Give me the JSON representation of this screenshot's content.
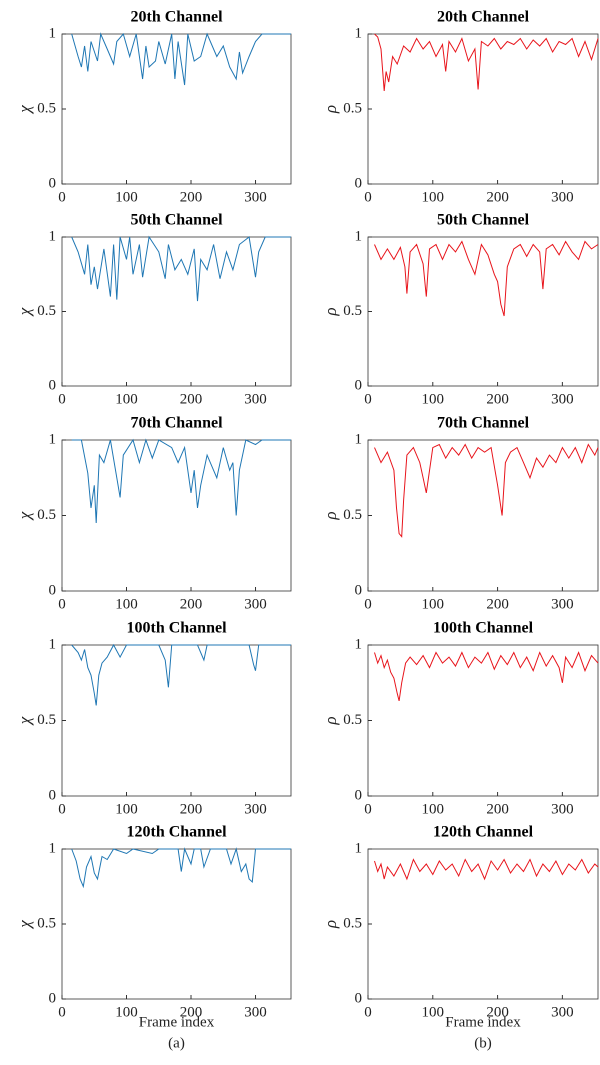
{
  "chart_data": [
    {
      "type": "line",
      "title": "20th Channel",
      "ylabel": "χ",
      "xlim": [
        0,
        355
      ],
      "ylim": [
        0,
        1
      ],
      "xticks": [
        0,
        100,
        200,
        300
      ],
      "yticks": [
        0,
        0.5,
        1
      ],
      "grid": false,
      "color": "#1f77b4",
      "x": [
        15,
        25,
        30,
        35,
        40,
        45,
        55,
        60,
        70,
        80,
        85,
        95,
        105,
        115,
        125,
        130,
        135,
        145,
        150,
        160,
        170,
        175,
        180,
        190,
        195,
        205,
        215,
        225,
        240,
        250,
        260,
        270,
        275,
        280,
        290,
        300,
        310,
        320,
        355
      ],
      "values": [
        1,
        0.85,
        0.78,
        0.92,
        0.75,
        0.95,
        0.82,
        1,
        0.9,
        0.8,
        0.95,
        1,
        0.85,
        1,
        0.7,
        0.92,
        0.78,
        0.82,
        0.95,
        0.8,
        1,
        0.7,
        0.95,
        0.66,
        1,
        0.82,
        0.85,
        1,
        0.85,
        0.92,
        0.78,
        0.7,
        0.88,
        0.74,
        0.85,
        0.95,
        1,
        1,
        1
      ]
    },
    {
      "type": "line",
      "title": "50th Channel",
      "ylabel": "χ",
      "xlim": [
        0,
        355
      ],
      "ylim": [
        0,
        1
      ],
      "xticks": [
        0,
        100,
        200,
        300
      ],
      "yticks": [
        0,
        0.5,
        1
      ],
      "grid": false,
      "color": "#1f77b4",
      "x": [
        15,
        25,
        35,
        40,
        45,
        50,
        55,
        65,
        75,
        80,
        85,
        90,
        100,
        105,
        110,
        120,
        125,
        135,
        150,
        160,
        165,
        175,
        185,
        195,
        205,
        210,
        215,
        225,
        235,
        245,
        255,
        265,
        275,
        290,
        300,
        305,
        315,
        355
      ],
      "values": [
        1,
        0.9,
        0.75,
        0.95,
        0.68,
        0.8,
        0.65,
        0.92,
        0.6,
        0.95,
        0.58,
        1,
        0.85,
        1,
        0.75,
        0.95,
        0.73,
        1,
        0.9,
        0.72,
        0.95,
        0.78,
        0.85,
        0.75,
        0.92,
        0.57,
        0.85,
        0.78,
        0.95,
        0.72,
        0.9,
        0.78,
        0.95,
        1,
        0.73,
        0.9,
        1,
        1
      ]
    },
    {
      "type": "line",
      "title": "70th Channel",
      "ylabel": "χ",
      "xlim": [
        0,
        355
      ],
      "ylim": [
        0,
        1
      ],
      "xticks": [
        0,
        100,
        200,
        300
      ],
      "yticks": [
        0,
        0.5,
        1
      ],
      "grid": false,
      "color": "#1f77b4",
      "x": [
        15,
        30,
        40,
        45,
        50,
        53,
        58,
        65,
        75,
        85,
        90,
        95,
        110,
        120,
        130,
        140,
        150,
        170,
        180,
        190,
        200,
        205,
        210,
        215,
        225,
        240,
        250,
        260,
        265,
        270,
        275,
        285,
        300,
        310,
        355
      ],
      "values": [
        1,
        1,
        0.78,
        0.55,
        0.7,
        0.45,
        0.9,
        0.85,
        1,
        0.75,
        0.62,
        0.9,
        1,
        0.85,
        1,
        0.88,
        1,
        0.95,
        0.85,
        0.95,
        0.65,
        0.8,
        0.55,
        0.7,
        0.9,
        0.75,
        0.95,
        0.8,
        0.85,
        0.5,
        0.8,
        1,
        0.97,
        1,
        1
      ]
    },
    {
      "type": "line",
      "title": "100th Channel",
      "ylabel": "χ",
      "xlim": [
        0,
        355
      ],
      "ylim": [
        0,
        1
      ],
      "xticks": [
        0,
        100,
        200,
        300
      ],
      "yticks": [
        0,
        0.5,
        1
      ],
      "grid": false,
      "color": "#1f77b4",
      "x": [
        15,
        25,
        30,
        35,
        40,
        45,
        50,
        53,
        57,
        62,
        70,
        80,
        90,
        100,
        150,
        160,
        165,
        170,
        210,
        220,
        225,
        290,
        297,
        300,
        305,
        355
      ],
      "values": [
        1,
        0.95,
        0.9,
        0.97,
        0.85,
        0.8,
        0.68,
        0.6,
        0.8,
        0.88,
        0.92,
        1,
        0.92,
        1,
        1,
        0.9,
        0.72,
        1,
        1,
        0.9,
        1,
        1,
        0.87,
        0.83,
        1,
        1
      ]
    },
    {
      "type": "line",
      "title": "120th Channel",
      "ylabel": "χ",
      "xlabel": "Frame index",
      "caption": "(a)",
      "xlim": [
        0,
        355
      ],
      "ylim": [
        0,
        1
      ],
      "xticks": [
        0,
        100,
        200,
        300
      ],
      "yticks": [
        0,
        0.5,
        1
      ],
      "grid": false,
      "color": "#1f77b4",
      "x": [
        15,
        22,
        28,
        33,
        38,
        45,
        50,
        55,
        62,
        70,
        80,
        100,
        110,
        140,
        150,
        180,
        185,
        190,
        200,
        205,
        215,
        220,
        230,
        255,
        262,
        270,
        278,
        285,
        290,
        295,
        300,
        355
      ],
      "values": [
        1,
        0.92,
        0.8,
        0.75,
        0.88,
        0.95,
        0.84,
        0.8,
        0.95,
        0.93,
        1,
        0.97,
        1,
        0.97,
        1,
        1,
        0.85,
        1,
        0.9,
        1,
        1,
        0.88,
        1,
        1,
        0.9,
        1,
        0.85,
        0.9,
        0.8,
        0.78,
        1,
        1
      ]
    },
    {
      "type": "line",
      "title": "20th Channel",
      "ylabel": "ρ",
      "xlim": [
        0,
        355
      ],
      "ylim": [
        0,
        1
      ],
      "xticks": [
        0,
        100,
        200,
        300
      ],
      "yticks": [
        0,
        0.5,
        1
      ],
      "grid": false,
      "color": "#e8141b",
      "x": [
        10,
        15,
        20,
        25,
        28,
        32,
        38,
        45,
        55,
        65,
        75,
        85,
        95,
        105,
        115,
        120,
        125,
        135,
        145,
        155,
        165,
        170,
        175,
        185,
        195,
        205,
        215,
        225,
        235,
        245,
        255,
        265,
        275,
        285,
        295,
        305,
        315,
        325,
        335,
        345,
        355
      ],
      "values": [
        1,
        0.98,
        0.9,
        0.62,
        0.75,
        0.68,
        0.85,
        0.8,
        0.92,
        0.88,
        0.97,
        0.9,
        0.95,
        0.85,
        0.93,
        0.75,
        0.95,
        0.88,
        0.97,
        0.82,
        0.9,
        0.63,
        0.95,
        0.92,
        0.97,
        0.9,
        0.95,
        0.93,
        0.97,
        0.9,
        0.96,
        0.92,
        0.97,
        0.88,
        0.95,
        0.93,
        0.97,
        0.85,
        0.95,
        0.83,
        0.97
      ]
    },
    {
      "type": "line",
      "title": "50th Channel",
      "ylabel": "ρ",
      "xlim": [
        0,
        355
      ],
      "ylim": [
        0,
        1
      ],
      "xticks": [
        0,
        100,
        200,
        300
      ],
      "yticks": [
        0,
        0.5,
        1
      ],
      "grid": false,
      "color": "#e8141b",
      "x": [
        10,
        20,
        30,
        40,
        50,
        57,
        60,
        65,
        75,
        85,
        90,
        95,
        105,
        115,
        125,
        135,
        145,
        155,
        165,
        175,
        185,
        195,
        200,
        205,
        210,
        215,
        225,
        235,
        245,
        255,
        265,
        270,
        275,
        285,
        295,
        305,
        315,
        325,
        335,
        345,
        355
      ],
      "values": [
        0.95,
        0.85,
        0.92,
        0.85,
        0.93,
        0.8,
        0.62,
        0.9,
        0.95,
        0.82,
        0.6,
        0.92,
        0.95,
        0.85,
        0.95,
        0.9,
        0.97,
        0.85,
        0.75,
        0.95,
        0.88,
        0.75,
        0.7,
        0.55,
        0.47,
        0.8,
        0.92,
        0.95,
        0.87,
        0.95,
        0.9,
        0.65,
        0.92,
        0.95,
        0.88,
        0.97,
        0.9,
        0.85,
        0.97,
        0.92,
        0.95
      ]
    },
    {
      "type": "line",
      "title": "70th Channel",
      "ylabel": "ρ",
      "xlim": [
        0,
        355
      ],
      "ylim": [
        0,
        1
      ],
      "xticks": [
        0,
        100,
        200,
        300
      ],
      "yticks": [
        0,
        0.5,
        1
      ],
      "grid": false,
      "color": "#e8141b",
      "x": [
        10,
        20,
        30,
        40,
        44,
        48,
        52,
        55,
        60,
        70,
        80,
        85,
        90,
        100,
        110,
        120,
        130,
        140,
        150,
        160,
        170,
        180,
        190,
        200,
        207,
        212,
        220,
        230,
        240,
        250,
        260,
        270,
        280,
        290,
        300,
        310,
        320,
        330,
        340,
        350,
        355
      ],
      "values": [
        0.95,
        0.85,
        0.92,
        0.8,
        0.55,
        0.38,
        0.36,
        0.6,
        0.9,
        0.95,
        0.85,
        0.75,
        0.65,
        0.95,
        0.97,
        0.88,
        0.95,
        0.9,
        0.97,
        0.88,
        0.95,
        0.92,
        0.95,
        0.7,
        0.5,
        0.85,
        0.92,
        0.95,
        0.85,
        0.75,
        0.88,
        0.82,
        0.9,
        0.85,
        0.95,
        0.88,
        0.95,
        0.85,
        0.97,
        0.9,
        0.95
      ]
    },
    {
      "type": "line",
      "title": "100th Channel",
      "ylabel": "ρ",
      "xlim": [
        0,
        355
      ],
      "ylim": [
        0,
        1
      ],
      "xticks": [
        0,
        100,
        200,
        300
      ],
      "yticks": [
        0,
        0.5,
        1
      ],
      "grid": false,
      "color": "#e8141b",
      "x": [
        10,
        15,
        20,
        25,
        30,
        35,
        40,
        45,
        48,
        52,
        58,
        65,
        75,
        85,
        95,
        105,
        115,
        125,
        135,
        145,
        155,
        165,
        175,
        185,
        195,
        205,
        215,
        225,
        235,
        245,
        255,
        265,
        275,
        285,
        295,
        300,
        305,
        315,
        325,
        335,
        345,
        355
      ],
      "values": [
        0.95,
        0.88,
        0.93,
        0.85,
        0.9,
        0.82,
        0.78,
        0.68,
        0.63,
        0.75,
        0.88,
        0.92,
        0.87,
        0.93,
        0.85,
        0.95,
        0.88,
        0.92,
        0.86,
        0.95,
        0.85,
        0.92,
        0.88,
        0.95,
        0.84,
        0.93,
        0.87,
        0.95,
        0.85,
        0.92,
        0.83,
        0.95,
        0.86,
        0.93,
        0.85,
        0.75,
        0.92,
        0.85,
        0.95,
        0.83,
        0.93,
        0.88
      ]
    },
    {
      "type": "line",
      "title": "120th Channel",
      "ylabel": "ρ",
      "xlabel": "Frame index",
      "caption": "(b)",
      "xlim": [
        0,
        355
      ],
      "ylim": [
        0,
        1
      ],
      "xticks": [
        0,
        100,
        200,
        300
      ],
      "yticks": [
        0,
        0.5,
        1
      ],
      "grid": false,
      "color": "#e8141b",
      "x": [
        10,
        15,
        20,
        25,
        30,
        40,
        50,
        60,
        70,
        80,
        90,
        100,
        110,
        120,
        130,
        140,
        150,
        160,
        170,
        180,
        190,
        200,
        210,
        220,
        230,
        240,
        250,
        260,
        270,
        280,
        290,
        300,
        310,
        320,
        330,
        340,
        350,
        355
      ],
      "values": [
        0.92,
        0.85,
        0.9,
        0.8,
        0.88,
        0.82,
        0.9,
        0.8,
        0.93,
        0.85,
        0.9,
        0.83,
        0.92,
        0.86,
        0.9,
        0.82,
        0.93,
        0.85,
        0.9,
        0.8,
        0.92,
        0.86,
        0.93,
        0.84,
        0.9,
        0.85,
        0.93,
        0.82,
        0.9,
        0.85,
        0.92,
        0.83,
        0.9,
        0.86,
        0.93,
        0.84,
        0.9,
        0.88
      ]
    }
  ]
}
